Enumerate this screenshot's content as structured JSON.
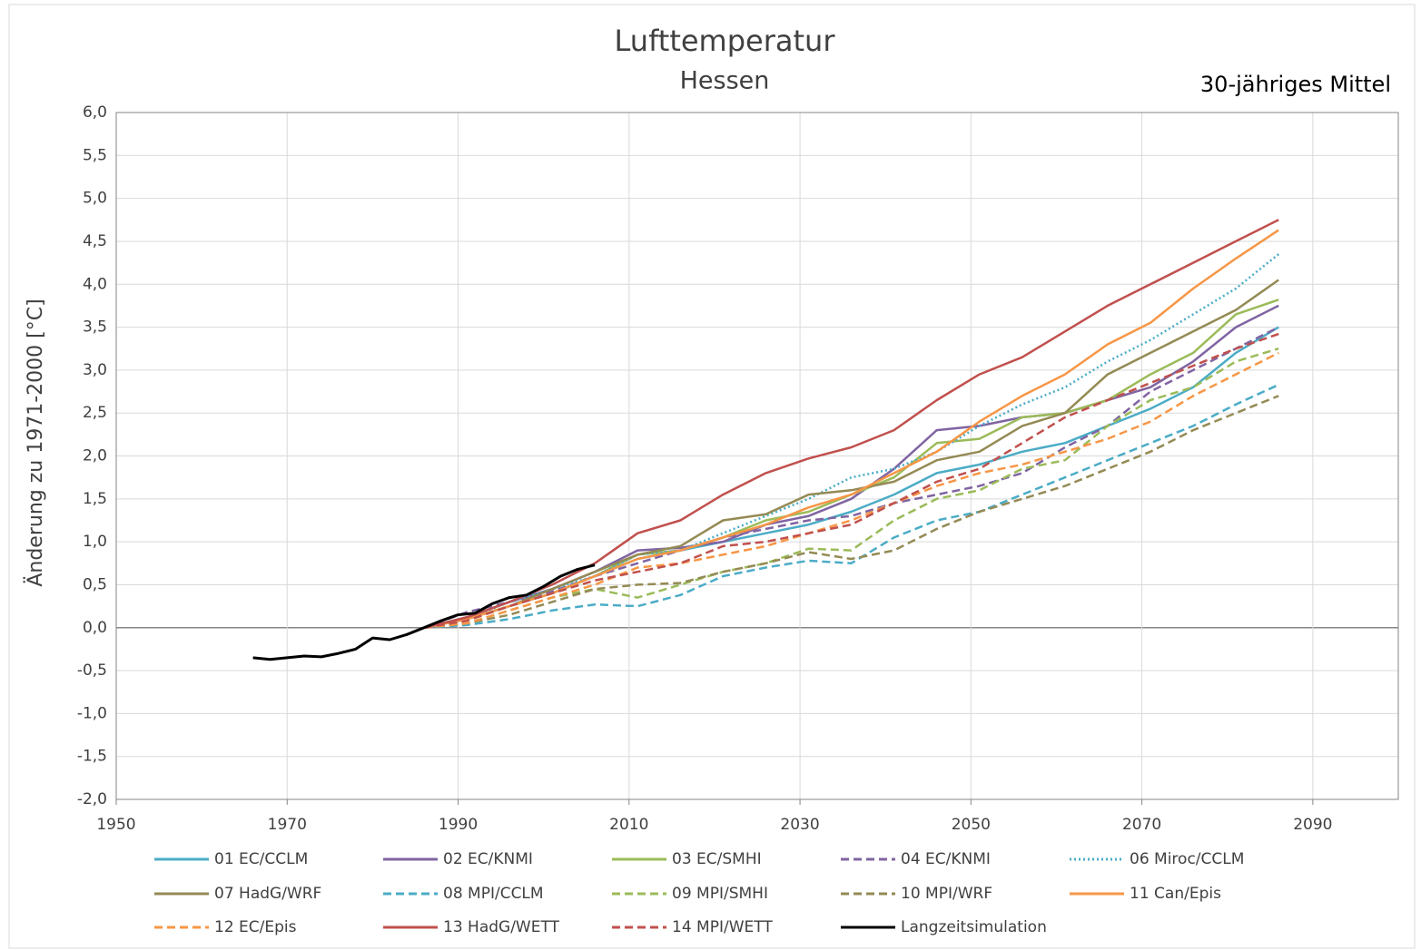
{
  "chart_data": {
    "type": "line",
    "title": "Lufttemperatur",
    "subtitle": "Hessen",
    "annotation": "30-jähriges Mittel",
    "y_label": "Änderung zu 1971-2000 [°C]",
    "xlim": [
      1950,
      2100
    ],
    "xticks": [
      1950,
      1970,
      1990,
      2010,
      2030,
      2050,
      2070,
      2090
    ],
    "ylim": [
      -2,
      6
    ],
    "yticks": [
      {
        "value": -2,
        "label": "-2,0"
      },
      {
        "value": -1.5,
        "label": "-1,5"
      },
      {
        "value": -1,
        "label": "-1,0"
      },
      {
        "value": -0.5,
        "label": "-0,5"
      },
      {
        "value": 0,
        "label": "0,0"
      },
      {
        "value": 0.5,
        "label": "0,5"
      },
      {
        "value": 1,
        "label": "1,0"
      },
      {
        "value": 1.5,
        "label": "1,5"
      },
      {
        "value": 2,
        "label": "2,0"
      },
      {
        "value": 2.5,
        "label": "2,5"
      },
      {
        "value": 3,
        "label": "3,0"
      },
      {
        "value": 3.5,
        "label": "3,5"
      },
      {
        "value": 4,
        "label": "4,0"
      },
      {
        "value": 4.5,
        "label": "4,5"
      },
      {
        "value": 5,
        "label": "5,0"
      },
      {
        "value": 5.5,
        "label": "5,5"
      },
      {
        "value": 6,
        "label": "6,0"
      }
    ],
    "grid": true,
    "legend": "bottom",
    "series": [
      {
        "name": "01 EC/CCLM",
        "color": "#4bacc6",
        "dash": "solid",
        "x": [
          1986,
          1991,
          1996,
          2001,
          2006,
          2011,
          2016,
          2021,
          2026,
          2031,
          2036,
          2041,
          2046,
          2051,
          2056,
          2061,
          2066,
          2071,
          2076,
          2081,
          2086
        ],
        "values": [
          0,
          0.1,
          0.25,
          0.4,
          0.6,
          0.8,
          0.9,
          1.0,
          1.1,
          1.2,
          1.35,
          1.55,
          1.8,
          1.9,
          2.05,
          2.15,
          2.35,
          2.55,
          2.8,
          3.2,
          3.5
        ]
      },
      {
        "name": "02 EC/KNMI",
        "color": "#8064a2",
        "dash": "solid",
        "x": [
          1986,
          1991,
          1996,
          2001,
          2006,
          2011,
          2016,
          2021,
          2026,
          2031,
          2036,
          2041,
          2046,
          2051,
          2056,
          2061,
          2066,
          2071,
          2076,
          2081,
          2086
        ],
        "values": [
          0,
          0.12,
          0.3,
          0.45,
          0.65,
          0.9,
          0.93,
          1.0,
          1.2,
          1.3,
          1.5,
          1.85,
          2.3,
          2.35,
          2.45,
          2.5,
          2.65,
          2.8,
          3.1,
          3.5,
          3.75
        ]
      },
      {
        "name": "03 EC/SMHI",
        "color": "#9bbb59",
        "dash": "solid",
        "x": [
          1986,
          1991,
          1996,
          2001,
          2006,
          2011,
          2016,
          2021,
          2026,
          2031,
          2036,
          2041,
          2046,
          2051,
          2056,
          2061,
          2066,
          2071,
          2076,
          2081,
          2086
        ],
        "values": [
          0,
          0.1,
          0.25,
          0.4,
          0.6,
          0.85,
          0.9,
          1.05,
          1.25,
          1.35,
          1.55,
          1.75,
          2.15,
          2.2,
          2.45,
          2.5,
          2.65,
          2.95,
          3.2,
          3.65,
          3.82
        ]
      },
      {
        "name": "04 EC/KNMI",
        "color": "#8064a2",
        "dash": "dashed",
        "x": [
          1986,
          1991,
          1996,
          2001,
          2006,
          2011,
          2016,
          2021,
          2026,
          2031,
          2036,
          2041,
          2046,
          2051,
          2056,
          2061,
          2066,
          2071,
          2076,
          2081,
          2086
        ],
        "values": [
          0,
          0.18,
          0.3,
          0.42,
          0.6,
          0.75,
          0.9,
          1.05,
          1.15,
          1.25,
          1.3,
          1.45,
          1.55,
          1.65,
          1.8,
          2.1,
          2.35,
          2.75,
          3.0,
          3.25,
          3.5
        ]
      },
      {
        "name": "06 Miroc/CCLM",
        "color": "#4bacc6",
        "dash": "dotted",
        "x": [
          1986,
          1991,
          1996,
          2001,
          2006,
          2011,
          2016,
          2021,
          2026,
          2031,
          2036,
          2041,
          2046,
          2051,
          2056,
          2061,
          2066,
          2071,
          2076,
          2081,
          2086
        ],
        "values": [
          0,
          0.1,
          0.3,
          0.45,
          0.6,
          0.85,
          0.9,
          1.1,
          1.3,
          1.5,
          1.75,
          1.85,
          2.05,
          2.35,
          2.6,
          2.8,
          3.1,
          3.35,
          3.65,
          3.95,
          4.35
        ]
      },
      {
        "name": "07 HadG/WRF",
        "color": "#948a54",
        "dash": "solid",
        "x": [
          1986,
          1991,
          1996,
          2001,
          2006,
          2011,
          2016,
          2021,
          2026,
          2031,
          2036,
          2041,
          2046,
          2051,
          2056,
          2061,
          2066,
          2071,
          2076,
          2081,
          2086
        ],
        "values": [
          0,
          0.1,
          0.25,
          0.45,
          0.65,
          0.85,
          0.95,
          1.25,
          1.32,
          1.55,
          1.6,
          1.7,
          1.95,
          2.05,
          2.35,
          2.5,
          2.95,
          3.2,
          3.45,
          3.7,
          4.05
        ]
      },
      {
        "name": "08 MPI/CCLM",
        "color": "#4bacc6",
        "dash": "dashed",
        "x": [
          1986,
          1991,
          1996,
          2001,
          2006,
          2011,
          2016,
          2021,
          2026,
          2031,
          2036,
          2041,
          2046,
          2051,
          2056,
          2061,
          2066,
          2071,
          2076,
          2081,
          2086
        ],
        "values": [
          0,
          0.03,
          0.1,
          0.2,
          0.27,
          0.25,
          0.38,
          0.6,
          0.7,
          0.78,
          0.75,
          1.05,
          1.25,
          1.35,
          1.55,
          1.75,
          1.95,
          2.15,
          2.35,
          2.6,
          2.83
        ]
      },
      {
        "name": "09 MPI/SMHI",
        "color": "#9bbb59",
        "dash": "dashed",
        "x": [
          1986,
          1991,
          1996,
          2001,
          2006,
          2011,
          2016,
          2021,
          2026,
          2031,
          2036,
          2041,
          2046,
          2051,
          2056,
          2061,
          2066,
          2071,
          2076,
          2081,
          2086
        ],
        "values": [
          0,
          0.05,
          0.2,
          0.35,
          0.45,
          0.35,
          0.5,
          0.65,
          0.75,
          0.92,
          0.9,
          1.25,
          1.5,
          1.6,
          1.85,
          1.95,
          2.35,
          2.65,
          2.8,
          3.1,
          3.25
        ]
      },
      {
        "name": "10 MPI/WRF",
        "color": "#948a54",
        "dash": "dashed",
        "x": [
          1986,
          1991,
          1996,
          2001,
          2006,
          2011,
          2016,
          2021,
          2026,
          2031,
          2036,
          2041,
          2046,
          2051,
          2056,
          2061,
          2066,
          2071,
          2076,
          2081,
          2086
        ],
        "values": [
          0,
          0.05,
          0.15,
          0.3,
          0.45,
          0.5,
          0.52,
          0.65,
          0.75,
          0.88,
          0.8,
          0.9,
          1.15,
          1.35,
          1.5,
          1.65,
          1.85,
          2.05,
          2.3,
          2.5,
          2.7
        ]
      },
      {
        "name": "11 Can/Epis",
        "color": "#f79646",
        "dash": "solid",
        "x": [
          1986,
          1991,
          1996,
          2001,
          2006,
          2011,
          2016,
          2021,
          2026,
          2031,
          2036,
          2041,
          2046,
          2051,
          2056,
          2061,
          2066,
          2071,
          2076,
          2081,
          2086
        ],
        "values": [
          0,
          0.1,
          0.25,
          0.4,
          0.6,
          0.8,
          0.9,
          1.05,
          1.2,
          1.4,
          1.55,
          1.8,
          2.05,
          2.4,
          2.7,
          2.95,
          3.3,
          3.55,
          3.95,
          4.3,
          4.63
        ]
      },
      {
        "name": "12 EC/Epis",
        "color": "#f79646",
        "dash": "dashed",
        "x": [
          1986,
          1991,
          1996,
          2001,
          2006,
          2011,
          2016,
          2021,
          2026,
          2031,
          2036,
          2041,
          2046,
          2051,
          2056,
          2061,
          2066,
          2071,
          2076,
          2081,
          2086
        ],
        "values": [
          0,
          0.05,
          0.2,
          0.35,
          0.5,
          0.7,
          0.75,
          0.85,
          0.95,
          1.1,
          1.25,
          1.45,
          1.65,
          1.8,
          1.9,
          2.05,
          2.2,
          2.4,
          2.7,
          2.95,
          3.2
        ]
      },
      {
        "name": "13 HadG/WETT",
        "color": "#c0504d",
        "dash": "solid",
        "x": [
          1986,
          1991,
          1996,
          2001,
          2006,
          2011,
          2016,
          2021,
          2026,
          2031,
          2036,
          2041,
          2046,
          2051,
          2056,
          2061,
          2066,
          2071,
          2076,
          2081,
          2086
        ],
        "values": [
          0,
          0.12,
          0.3,
          0.5,
          0.75,
          1.1,
          1.25,
          1.55,
          1.8,
          1.97,
          2.1,
          2.3,
          2.65,
          2.95,
          3.15,
          3.45,
          3.75,
          4.0,
          4.25,
          4.5,
          4.75
        ]
      },
      {
        "name": "14 MPI/WETT",
        "color": "#c0504d",
        "dash": "dashed",
        "x": [
          1986,
          1991,
          1996,
          2001,
          2006,
          2011,
          2016,
          2021,
          2026,
          2031,
          2036,
          2041,
          2046,
          2051,
          2056,
          2061,
          2066,
          2071,
          2076,
          2081,
          2086
        ],
        "values": [
          0,
          0.08,
          0.25,
          0.4,
          0.55,
          0.65,
          0.75,
          0.95,
          1.0,
          1.1,
          1.2,
          1.45,
          1.7,
          1.85,
          2.15,
          2.45,
          2.65,
          2.85,
          3.05,
          3.25,
          3.42
        ]
      },
      {
        "name": "Langzeitsimulation",
        "color": "#000000",
        "dash": "solid",
        "x": [
          1966,
          1968,
          1970,
          1972,
          1974,
          1976,
          1978,
          1980,
          1982,
          1984,
          1986,
          1988,
          1990,
          1992,
          1994,
          1996,
          1998,
          2000,
          2002,
          2004,
          2006
        ],
        "values": [
          -0.35,
          -0.37,
          -0.35,
          -0.33,
          -0.34,
          -0.3,
          -0.25,
          -0.12,
          -0.14,
          -0.08,
          0,
          0.08,
          0.15,
          0.17,
          0.28,
          0.35,
          0.38,
          0.48,
          0.6,
          0.68,
          0.73
        ]
      }
    ]
  }
}
